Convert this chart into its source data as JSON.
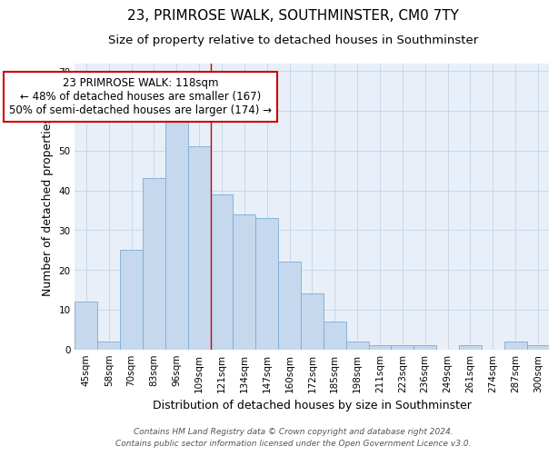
{
  "title": "23, PRIMROSE WALK, SOUTHMINSTER, CM0 7TY",
  "subtitle": "Size of property relative to detached houses in Southminster",
  "xlabel": "Distribution of detached houses by size in Southminster",
  "ylabel": "Number of detached properties",
  "categories": [
    "45sqm",
    "58sqm",
    "70sqm",
    "83sqm",
    "96sqm",
    "109sqm",
    "121sqm",
    "134sqm",
    "147sqm",
    "160sqm",
    "172sqm",
    "185sqm",
    "198sqm",
    "211sqm",
    "223sqm",
    "236sqm",
    "249sqm",
    "261sqm",
    "274sqm",
    "287sqm",
    "300sqm"
  ],
  "values": [
    12,
    2,
    25,
    43,
    58,
    51,
    39,
    34,
    33,
    22,
    14,
    7,
    2,
    1,
    1,
    1,
    0,
    1,
    0,
    2,
    1
  ],
  "bar_color": "#c5d8ed",
  "bar_edge_color": "#7aadd4",
  "grid_color": "#c8d8e8",
  "background_color": "#e8eff8",
  "vline_x": 5.5,
  "vline_color": "#cc0000",
  "annotation_text": "23 PRIMROSE WALK: 118sqm\n← 48% of detached houses are smaller (167)\n50% of semi-detached houses are larger (174) →",
  "annotation_box_facecolor": "#ffffff",
  "annotation_box_edgecolor": "#cc0000",
  "ylim": [
    0,
    72
  ],
  "yticks": [
    0,
    10,
    20,
    30,
    40,
    50,
    60,
    70
  ],
  "footer": "Contains HM Land Registry data © Crown copyright and database right 2024.\nContains public sector information licensed under the Open Government Licence v3.0.",
  "title_fontsize": 11,
  "subtitle_fontsize": 9.5,
  "axis_label_fontsize": 9,
  "tick_fontsize": 7.5,
  "annotation_fontsize": 8.5,
  "footer_fontsize": 6.5
}
